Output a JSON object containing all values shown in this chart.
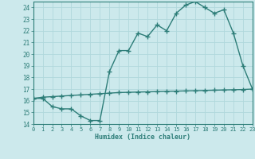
{
  "line1_x": [
    0,
    1,
    2,
    3,
    4,
    5,
    6,
    7,
    8,
    9,
    10,
    11,
    12,
    13,
    14,
    15,
    16,
    17,
    18,
    19,
    20,
    21,
    22,
    23
  ],
  "line1_y": [
    16.2,
    16.2,
    15.5,
    15.3,
    15.3,
    14.7,
    14.3,
    14.3,
    18.5,
    20.3,
    20.3,
    21.8,
    21.5,
    22.5,
    22.0,
    23.5,
    24.2,
    24.5,
    24.0,
    23.5,
    23.8,
    21.8,
    19.0,
    17.0
  ],
  "line2_x": [
    0,
    1,
    2,
    3,
    4,
    5,
    6,
    7,
    8,
    9,
    10,
    11,
    12,
    13,
    14,
    15,
    16,
    17,
    18,
    19,
    20,
    21,
    22,
    23
  ],
  "line2_y": [
    16.2,
    16.3,
    16.35,
    16.4,
    16.45,
    16.5,
    16.55,
    16.6,
    16.65,
    16.7,
    16.72,
    16.74,
    16.76,
    16.78,
    16.8,
    16.82,
    16.84,
    16.86,
    16.88,
    16.9,
    16.92,
    16.94,
    16.96,
    17.0
  ],
  "color": "#2d7d78",
  "bg_color": "#cce9ec",
  "grid_color": "#b0d8dc",
  "xlabel": "Humidex (Indice chaleur)",
  "xlim": [
    0,
    23
  ],
  "ylim": [
    14,
    24.5
  ],
  "yticks": [
    14,
    15,
    16,
    17,
    18,
    19,
    20,
    21,
    22,
    23,
    24
  ],
  "xticks": [
    0,
    1,
    2,
    3,
    4,
    5,
    6,
    7,
    8,
    9,
    10,
    11,
    12,
    13,
    14,
    15,
    16,
    17,
    18,
    19,
    20,
    21,
    22,
    23
  ],
  "xticklabels": [
    "0",
    "1",
    "2",
    "3",
    "4",
    "5",
    "6",
    "7",
    "8",
    "9",
    "10",
    "11",
    "12",
    "13",
    "14",
    "15",
    "16",
    "17",
    "18",
    "19",
    "20",
    "21",
    "22",
    "23"
  ],
  "marker": "+",
  "markersize": 5,
  "linewidth": 1.0
}
